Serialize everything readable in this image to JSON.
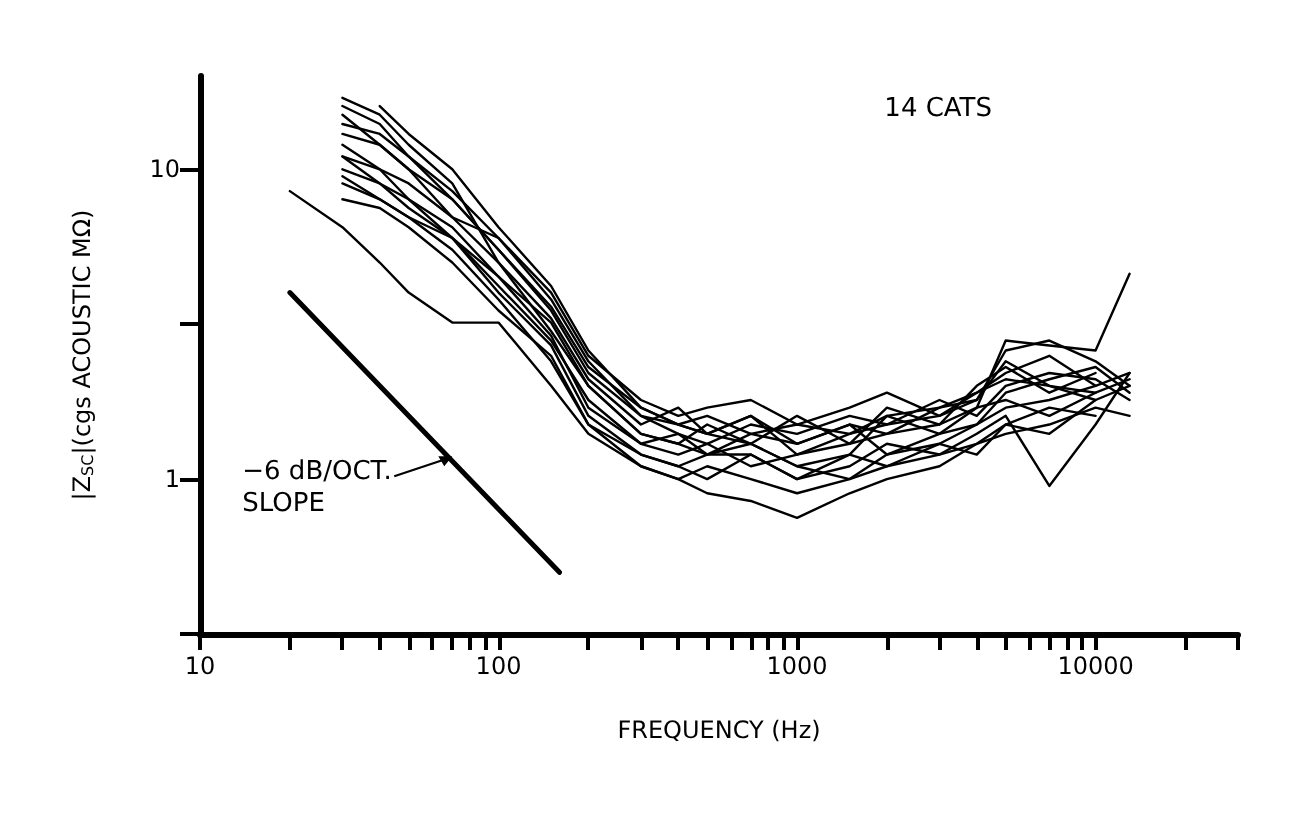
{
  "chart_data": {
    "type": "line",
    "xlabel": "FREQUENCY (Hz)",
    "ylabel": "|Z$_{SC}$|(cgs ACOUSTIC MΩ)",
    "annotations": [
      "14 CATS",
      {
        "text": "−6 dB/OCT. SLOPE",
        "x": 70,
        "y": 1.15
      }
    ],
    "x": [
      20,
      30,
      40,
      50,
      70,
      100,
      150,
      200,
      300,
      400,
      500,
      700,
      1000,
      1500,
      2000,
      3000,
      4000,
      5000,
      7000,
      10000,
      13000
    ],
    "series": [
      {
        "color": "#000000",
        "values": [
          8.5,
          6.5,
          5,
          4,
          3.2,
          3.2,
          2,
          1.4,
          1.1,
          1.0,
          0.9,
          0.85,
          0.75,
          0.9,
          1.0,
          1.1,
          1.3,
          1.5,
          1.4,
          1.8,
          2.0
        ]
      },
      {
        "color": "#000000",
        "values": [
          null,
          16,
          14,
          11,
          8,
          5.5,
          3.5,
          2.2,
          1.6,
          1.5,
          1.4,
          1.6,
          1.2,
          1.4,
          1.5,
          1.6,
          1.8,
          2.4,
          2.0,
          1.8,
          null
        ]
      },
      {
        "color": "#000000",
        "values": [
          null,
          17,
          15,
          12,
          9,
          5,
          3,
          2,
          1.4,
          1.3,
          1.5,
          1.3,
          1.1,
          1.2,
          1.6,
          1.4,
          1.7,
          2.8,
          2.7,
          2.6,
          4.6
        ]
      },
      {
        "color": "#000000",
        "values": [
          null,
          13,
          12,
          10,
          7,
          6,
          4,
          2.5,
          1.8,
          1.6,
          1.7,
          1.8,
          1.5,
          1.7,
          1.9,
          1.6,
          1.9,
          2.2,
          2.5,
          2.0,
          null
        ]
      },
      {
        "color": "#000000",
        "values": [
          null,
          9,
          8,
          7,
          6,
          4,
          2.7,
          1.6,
          1.2,
          1.1,
          1.0,
          1.2,
          1.0,
          1.1,
          1.3,
          1.2,
          1.4,
          1.6,
          0.95,
          1.5,
          2.2
        ]
      },
      {
        "color": "#000000",
        "values": [
          null,
          11,
          9,
          8,
          6.5,
          4.5,
          3.2,
          2.0,
          1.4,
          1.3,
          1.2,
          1.4,
          1.3,
          1.5,
          1.2,
          1.4,
          1.5,
          1.9,
          2.1,
          2.3,
          1.9
        ]
      },
      {
        "color": "#000000",
        "values": [
          null,
          8,
          7.5,
          6.5,
          5,
          3.5,
          2.5,
          1.5,
          1.1,
          1.0,
          1.1,
          1.0,
          0.9,
          1.0,
          1.1,
          1.3,
          1.2,
          1.5,
          1.7,
          1.6,
          null
        ]
      },
      {
        "color": "#000000",
        "values": [
          null,
          14,
          13,
          11,
          8.5,
          6,
          3.8,
          2.4,
          1.6,
          1.4,
          1.3,
          1.5,
          1.4,
          1.6,
          1.5,
          1.8,
          1.6,
          2.0,
          2.2,
          2.1,
          1.8
        ]
      },
      {
        "color": "#000000",
        "values": [
          null,
          10,
          9,
          7.5,
          6,
          4.2,
          2.8,
          1.8,
          1.3,
          1.2,
          1.3,
          1.1,
          1.2,
          1.3,
          1.4,
          1.5,
          1.7,
          1.8,
          1.6,
          1.9,
          2.1
        ]
      },
      {
        "color": "#000000",
        "values": [
          null,
          12,
          10,
          9,
          7,
          5,
          3.3,
          2.1,
          1.5,
          1.7,
          1.4,
          1.3,
          1.6,
          1.3,
          1.7,
          1.5,
          2.0,
          2.3,
          1.9,
          2.2,
          null
        ]
      },
      {
        "color": "#000000",
        "values": [
          null,
          9.5,
          8,
          7,
          5.5,
          3.8,
          2.4,
          1.5,
          1.2,
          1.1,
          1.2,
          1.2,
          1.0,
          1.2,
          1.1,
          1.2,
          1.3,
          1.4,
          1.5,
          1.7,
          1.6
        ]
      },
      {
        "color": "#000000",
        "values": [
          null,
          15,
          12,
          10,
          8,
          5.5,
          3.6,
          2.3,
          1.7,
          1.5,
          1.6,
          1.4,
          1.5,
          1.4,
          1.6,
          1.7,
          1.8,
          2.6,
          2.8,
          2.4,
          2.0
        ]
      },
      {
        "color": "#000000",
        "values": [
          null,
          11,
          10,
          8,
          6,
          4.5,
          2.9,
          1.7,
          1.3,
          1.4,
          1.2,
          1.3,
          1.1,
          1.0,
          1.2,
          1.3,
          1.5,
          1.7,
          1.8,
          2.0,
          2.2
        ]
      },
      {
        "color": "#000000",
        "values": [
          null,
          null,
          16,
          13,
          10,
          6.5,
          4.2,
          2.6,
          1.7,
          1.5,
          1.4,
          1.6,
          1.3,
          1.5,
          1.4,
          1.7,
          1.9,
          2.1,
          2.0,
          1.9,
          null
        ]
      },
      {
        "color": "#000000",
        "x": [
          20,
          160
        ],
        "values": [
          4,
          0.5
        ]
      }
    ],
    "log": "xy",
    "xlim": [
      10,
      30000
    ],
    "xticks": [
      10,
      {
        "value": 20,
        "label": null
      },
      {
        "value": 30,
        "label": null
      },
      {
        "value": 40,
        "label": null
      },
      {
        "value": 50,
        "label": null
      },
      {
        "value": 60,
        "label": null
      },
      {
        "value": 70,
        "label": null
      },
      {
        "value": 80,
        "label": null
      },
      {
        "value": 90,
        "label": null
      },
      100,
      {
        "value": 200,
        "label": null
      },
      {
        "value": 300,
        "label": null
      },
      {
        "value": 400,
        "label": null
      },
      {
        "value": 500,
        "label": null
      },
      {
        "value": 600,
        "label": null
      },
      {
        "value": 700,
        "label": null
      },
      {
        "value": 800,
        "label": null
      },
      {
        "value": 900,
        "label": null
      },
      1000,
      {
        "value": 2000,
        "label": null
      },
      {
        "value": 3000,
        "label": null
      },
      {
        "value": 4000,
        "label": null
      },
      {
        "value": 5000,
        "label": null
      },
      {
        "value": 6000,
        "label": null
      },
      {
        "value": 7000,
        "label": null
      },
      {
        "value": 8000,
        "label": null
      },
      {
        "value": 9000,
        "label": null
      },
      10000,
      {
        "value": 20000,
        "label": null
      },
      {
        "value": 30000,
        "label": null
      }
    ],
    "ylim": [
      0.3162,
      20
    ],
    "yticks": [
      {
        "value": 0.3162,
        "label": null
      },
      1,
      {
        "value": 3.162,
        "label": null
      },
      10
    ],
    "grid": false,
    "marker": "none",
    "line_style": "solid"
  }
}
